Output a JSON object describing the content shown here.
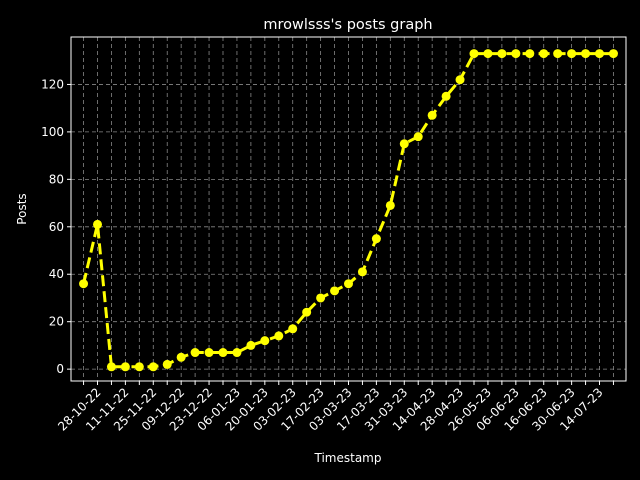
{
  "chart_data": {
    "type": "line",
    "title": "mrowlsss's posts graph",
    "xlabel": "Timestamp",
    "ylabel": "Posts",
    "categories": [
      null,
      "28-10-22",
      null,
      "11-11-22",
      null,
      "25-11-22",
      null,
      "09-12-22",
      null,
      "23-12-22",
      null,
      "06-01-23",
      null,
      "20-01-23",
      null,
      "03-02-23",
      null,
      "17-02-23",
      null,
      "03-03-23",
      null,
      "17-03-23",
      null,
      "31-03-23",
      null,
      "14-04-23",
      null,
      "28-04-23",
      null,
      "26-05-23",
      null,
      "06-06-23",
      null,
      "16-06-23",
      null,
      "30-06-23",
      null,
      "14-07-23",
      null
    ],
    "series": [
      {
        "name": "Posts",
        "color": "#ffff00",
        "values": [
          36,
          61,
          1,
          1,
          1,
          1,
          2,
          5,
          7,
          7,
          7,
          7,
          10,
          12,
          14,
          17,
          24,
          30,
          33,
          36,
          41,
          55,
          69,
          95,
          98,
          107,
          115,
          122,
          133,
          133,
          133,
          133,
          133,
          133,
          133,
          133,
          133,
          133,
          133
        ]
      }
    ],
    "ylim": [
      -5,
      140
    ],
    "yticks": [
      0,
      20,
      40,
      60,
      80,
      100,
      120
    ],
    "grid": true
  }
}
